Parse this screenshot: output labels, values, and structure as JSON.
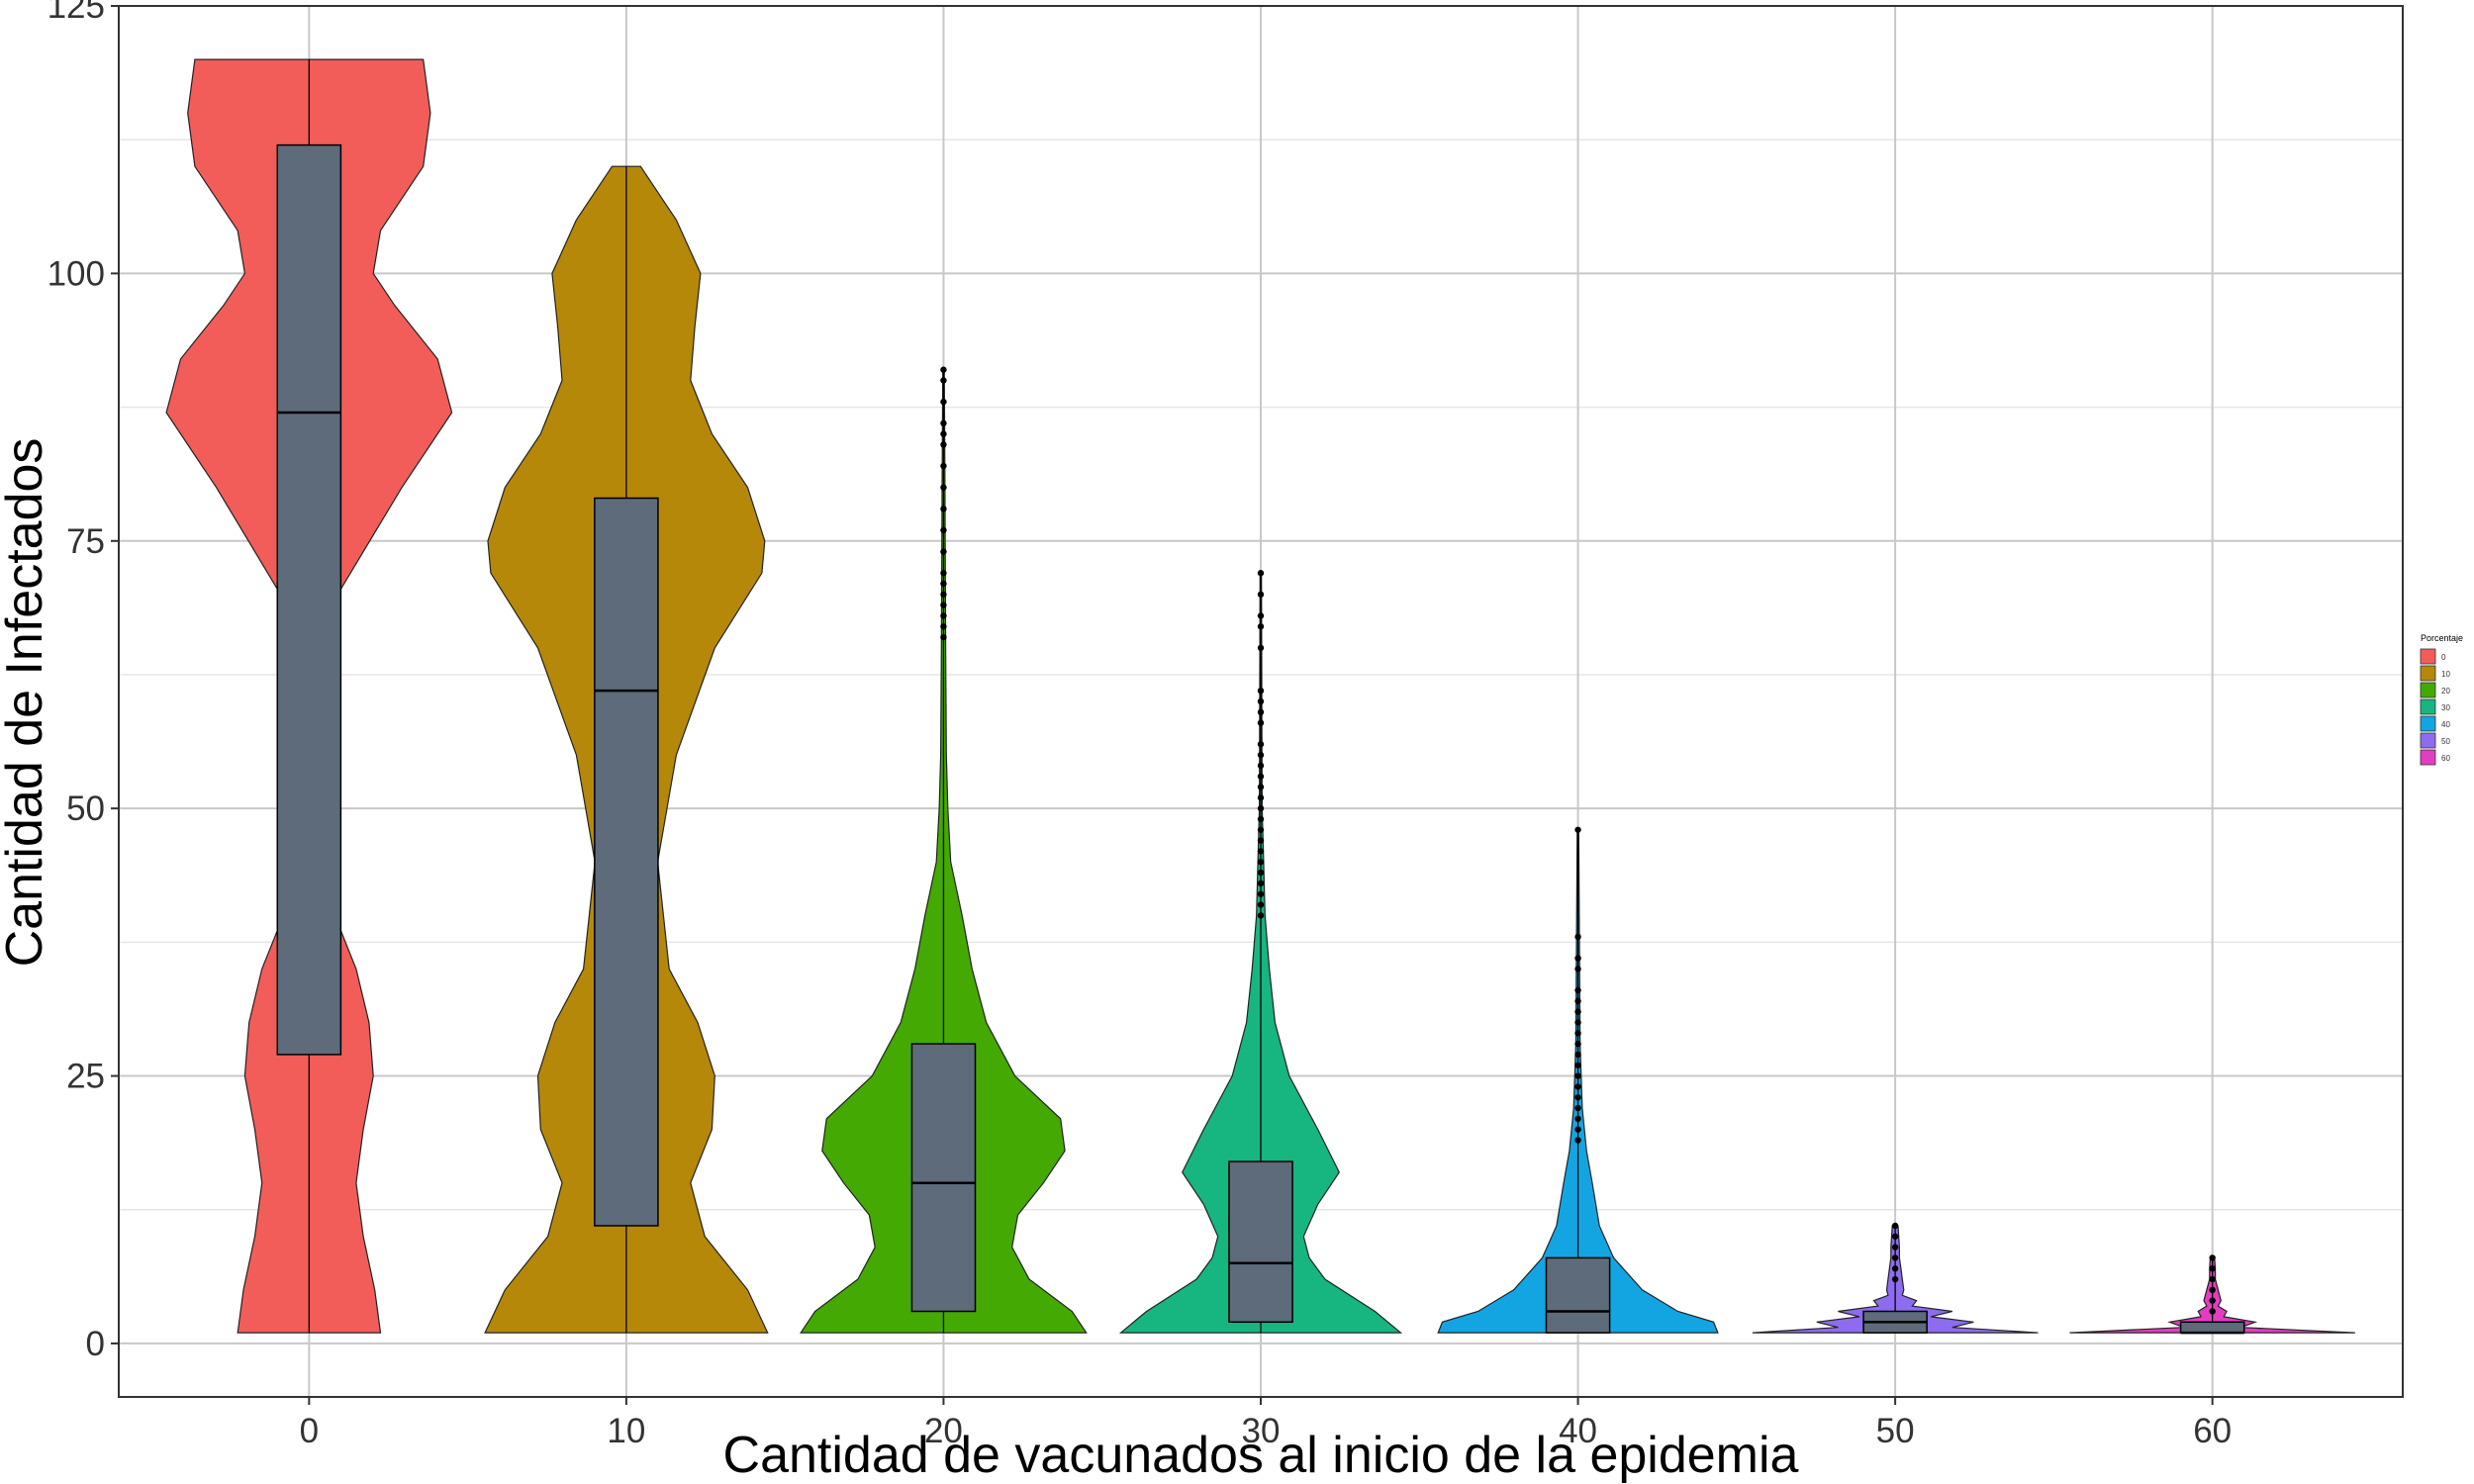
{
  "chart_data": {
    "type": "violin",
    "xlabel": "Cantidad de vacunados al inicio de la epidemia",
    "ylabel": "Cantidad de Infectados",
    "ylim": [
      -5,
      125
    ],
    "y_ticks": [
      0,
      25,
      50,
      75,
      100,
      125
    ],
    "grid": true,
    "legend": {
      "title": "Porcentaje",
      "position": "right"
    },
    "categories": [
      "0",
      "10",
      "20",
      "30",
      "40",
      "50",
      "60"
    ],
    "box_color": "#5d6b7a",
    "groups": [
      {
        "label": "0",
        "color": "#F25D59",
        "min": 1,
        "max": 120,
        "box": {
          "q1": 27,
          "median": 87,
          "q3": 112
        },
        "outliers": [],
        "density": [
          [
            1,
            0.5
          ],
          [
            5,
            0.46
          ],
          [
            10,
            0.38
          ],
          [
            15,
            0.33
          ],
          [
            20,
            0.38
          ],
          [
            25,
            0.45
          ],
          [
            30,
            0.42
          ],
          [
            35,
            0.33
          ],
          [
            40,
            0.18
          ],
          [
            50,
            0.1
          ],
          [
            60,
            0.11
          ],
          [
            70,
            0.2
          ],
          [
            80,
            0.65
          ],
          [
            87,
            1.0
          ],
          [
            92,
            0.9
          ],
          [
            97,
            0.6
          ],
          [
            100,
            0.45
          ],
          [
            104,
            0.5
          ],
          [
            110,
            0.8
          ],
          [
            115,
            0.85
          ],
          [
            120,
            0.8
          ]
        ]
      },
      {
        "label": "10",
        "color": "#B5880A",
        "min": 1,
        "max": 110,
        "box": {
          "q1": 11,
          "median": 61,
          "q3": 79
        },
        "outliers": [],
        "density": [
          [
            1,
            0.99
          ],
          [
            5,
            0.85
          ],
          [
            10,
            0.55
          ],
          [
            15,
            0.45
          ],
          [
            20,
            0.6
          ],
          [
            25,
            0.62
          ],
          [
            30,
            0.5
          ],
          [
            35,
            0.3
          ],
          [
            45,
            0.22
          ],
          [
            55,
            0.35
          ],
          [
            65,
            0.62
          ],
          [
            72,
            0.95
          ],
          [
            75,
            0.97
          ],
          [
            80,
            0.85
          ],
          [
            85,
            0.6
          ],
          [
            90,
            0.45
          ],
          [
            95,
            0.48
          ],
          [
            100,
            0.52
          ],
          [
            105,
            0.35
          ],
          [
            110,
            0.1
          ]
        ]
      },
      {
        "label": "20",
        "color": "#44A902",
        "min": 1,
        "max": 91,
        "box": {
          "q1": 3,
          "median": 15,
          "q3": 28
        },
        "outliers": [
          66,
          67,
          68,
          69,
          70,
          71,
          72,
          74,
          76,
          78,
          80,
          82,
          84,
          85,
          86,
          88,
          90,
          91
        ],
        "density": [
          [
            1,
            1.0
          ],
          [
            3,
            0.9
          ],
          [
            6,
            0.6
          ],
          [
            9,
            0.48
          ],
          [
            12,
            0.52
          ],
          [
            15,
            0.7
          ],
          [
            18,
            0.85
          ],
          [
            21,
            0.82
          ],
          [
            25,
            0.5
          ],
          [
            30,
            0.3
          ],
          [
            35,
            0.2
          ],
          [
            40,
            0.13
          ],
          [
            45,
            0.05
          ],
          [
            50,
            0.03
          ],
          [
            55,
            0.02
          ],
          [
            65,
            0.015
          ],
          [
            80,
            0.01
          ],
          [
            91,
            0.005
          ]
        ]
      },
      {
        "label": "30",
        "color": "#17B57F",
        "min": 1,
        "max": 72,
        "box": {
          "q1": 2,
          "median": 7.5,
          "q3": 17
        },
        "outliers": [
          40,
          41,
          42,
          43,
          44,
          45,
          46,
          47,
          48,
          49,
          50,
          51,
          52,
          53,
          54,
          55,
          56,
          58,
          59,
          60,
          61,
          65,
          67,
          68,
          70,
          72
        ],
        "density": [
          [
            1,
            0.98
          ],
          [
            3,
            0.8
          ],
          [
            6,
            0.45
          ],
          [
            8,
            0.34
          ],
          [
            10,
            0.3
          ],
          [
            13,
            0.4
          ],
          [
            16,
            0.55
          ],
          [
            20,
            0.4
          ],
          [
            25,
            0.2
          ],
          [
            30,
            0.1
          ],
          [
            35,
            0.06
          ],
          [
            40,
            0.03
          ],
          [
            45,
            0.02
          ],
          [
            50,
            0.01
          ],
          [
            72,
            0.005
          ]
        ]
      },
      {
        "label": "40",
        "color": "#12A5E2",
        "min": 1,
        "max": 48,
        "box": {
          "q1": 1,
          "median": 3,
          "q3": 8
        },
        "outliers": [
          19,
          20,
          21,
          22,
          23,
          24,
          25,
          26,
          27,
          28,
          29,
          30,
          31,
          32,
          33,
          35,
          36,
          38,
          48
        ],
        "density": [
          [
            1,
            0.98
          ],
          [
            2,
            0.95
          ],
          [
            3,
            0.7
          ],
          [
            5,
            0.45
          ],
          [
            8,
            0.25
          ],
          [
            11,
            0.15
          ],
          [
            15,
            0.1
          ],
          [
            18,
            0.06
          ],
          [
            22,
            0.03
          ],
          [
            28,
            0.015
          ],
          [
            48,
            0.005
          ]
        ]
      },
      {
        "label": "50",
        "color": "#8D6CF0",
        "min": 1,
        "max": 11,
        "box": {
          "q1": 1,
          "median": 2,
          "q3": 3
        },
        "outliers": [
          6,
          7,
          8,
          9,
          10,
          11
        ],
        "density": [
          [
            1,
            1.0
          ],
          [
            1.5,
            0.4
          ],
          [
            2,
            0.55
          ],
          [
            2.5,
            0.25
          ],
          [
            3,
            0.4
          ],
          [
            3.5,
            0.12
          ],
          [
            4,
            0.15
          ],
          [
            4.5,
            0.05
          ],
          [
            5,
            0.06
          ],
          [
            6,
            0.05
          ],
          [
            7,
            0.04
          ],
          [
            8,
            0.03
          ],
          [
            9,
            0.03
          ],
          [
            10,
            0.025
          ],
          [
            11,
            0.02
          ]
        ]
      },
      {
        "label": "60",
        "color": "#E33DC2",
        "min": 1,
        "max": 8,
        "box": {
          "q1": 1,
          "median": 1,
          "q3": 2
        },
        "outliers": [
          3,
          4,
          5,
          6,
          7,
          8
        ],
        "density": [
          [
            1,
            1.0
          ],
          [
            1.5,
            0.2
          ],
          [
            2,
            0.3
          ],
          [
            2.5,
            0.08
          ],
          [
            3,
            0.1
          ],
          [
            3.5,
            0.04
          ],
          [
            4,
            0.06
          ],
          [
            5,
            0.04
          ],
          [
            6,
            0.02
          ],
          [
            7,
            0.02
          ],
          [
            8,
            0.015
          ]
        ]
      }
    ]
  }
}
